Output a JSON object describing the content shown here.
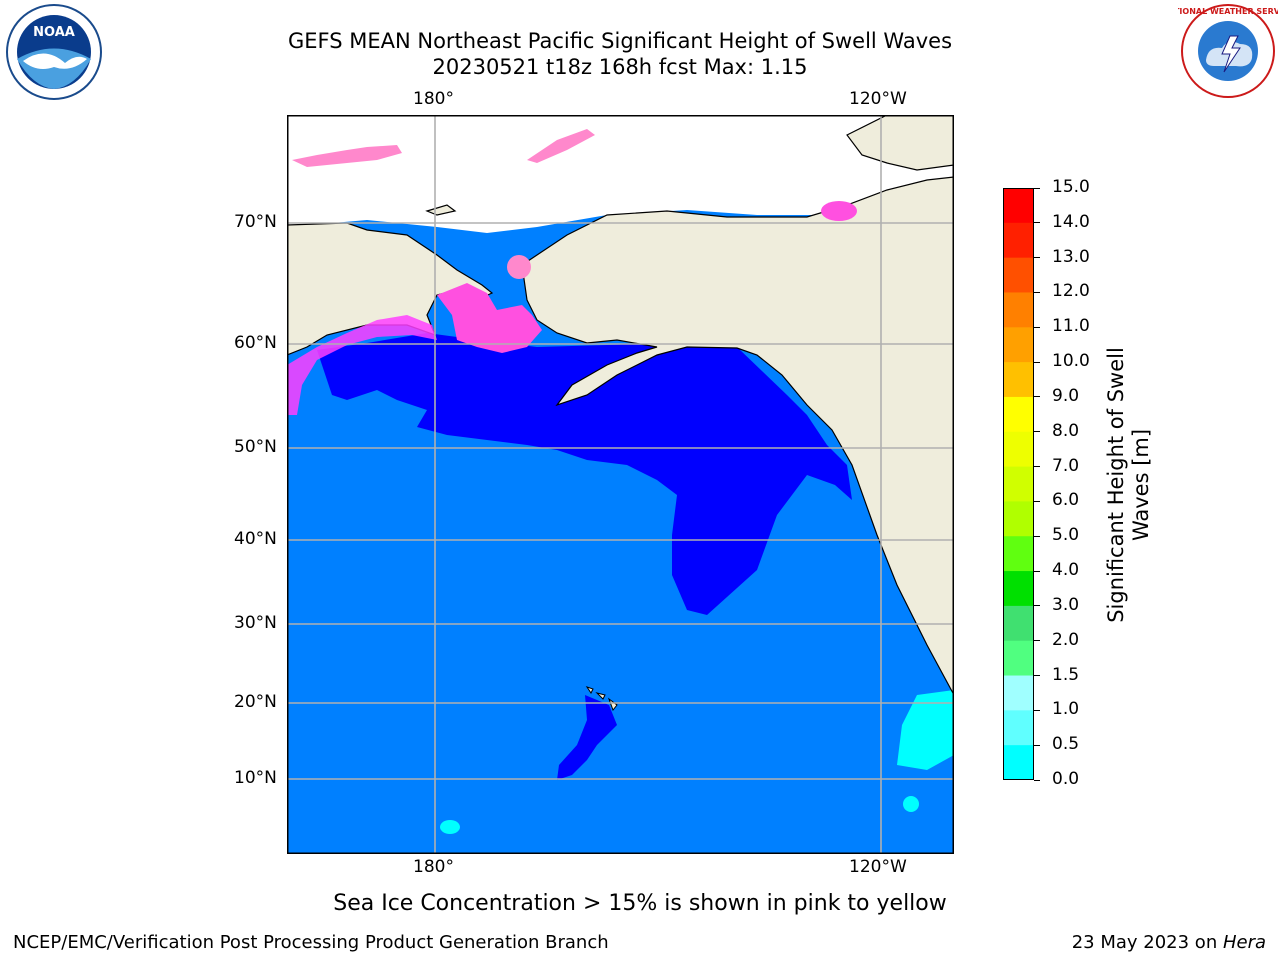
{
  "header": {
    "title_line1": "GEFS MEAN Northeast Pacific Significant Height of Swell Waves",
    "title_line2": "20230521 t18z 168h fcst   Max: 1.15"
  },
  "logos": {
    "noaa_text": "NOAA",
    "nws_text": "NATIONAL WEATHER SERVICE"
  },
  "map": {
    "lon_labels_top": [
      "180°",
      "120°W"
    ],
    "lon_labels_bottom": [
      "180°",
      "120°W"
    ],
    "lat_labels": [
      "70°N",
      "60°N",
      "50°N",
      "40°N",
      "30°N",
      "20°N",
      "10°N"
    ],
    "colors": {
      "ocean_0_0.5": "#0000ff",
      "ocean_0.5_1.0": "#0080ff",
      "ocean_1.0_1.5": "#00ffff",
      "land": "#efeddc",
      "ice": "#ff88cc",
      "grid": "#b0b0b0"
    }
  },
  "colorbar": {
    "title_line1": "Significant Height of Swell",
    "title_line2": "Waves [m]",
    "tick_labels": [
      "15.0",
      "14.0",
      "13.0",
      "12.0",
      "11.0",
      "10.0",
      "9.0",
      "8.0",
      "7.0",
      "6.0",
      "5.0",
      "4.0",
      "3.0",
      "2.0",
      "1.5",
      "1.0",
      "0.5",
      "0.0"
    ],
    "colors": [
      "#ff0000",
      "#ff2000",
      "#ff5000",
      "#ff8000",
      "#ffa000",
      "#ffc000",
      "#ffff00",
      "#eeff00",
      "#d0ff00",
      "#b0ff00",
      "#60ff10",
      "#00e000",
      "#40e070",
      "#50ff80",
      "#a0ffff",
      "#60ffff",
      "#00ffff",
      "#0080ff",
      "#0000ff"
    ]
  },
  "footer": {
    "note": "Sea Ice Concentration > 15% is shown in pink to yellow",
    "left": "NCEP/EMC/Verification Post Processing Product Generation Branch",
    "right_prefix": "23 May 2023 on ",
    "right_machine": "Hera"
  }
}
